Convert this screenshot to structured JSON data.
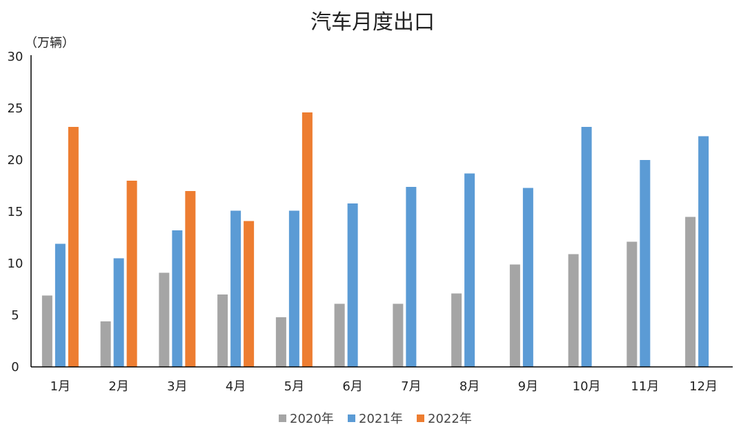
{
  "chart_data": {
    "type": "bar",
    "title": "汽车月度出口",
    "ylabel": "（万辆）",
    "xlabel": "",
    "ylim": [
      0,
      30
    ],
    "yticks": [
      0,
      5,
      10,
      15,
      20,
      25,
      30
    ],
    "grid": false,
    "legend_position": "bottom",
    "categories": [
      "1月",
      "2月",
      "3月",
      "4月",
      "5月",
      "6月",
      "7月",
      "8月",
      "9月",
      "10月",
      "11月",
      "12月"
    ],
    "series": [
      {
        "name": "2020年",
        "color": "#A5A5A5",
        "values": [
          6.9,
          4.4,
          9.1,
          7.0,
          4.8,
          6.1,
          6.1,
          7.1,
          9.9,
          10.9,
          12.1,
          14.5
        ]
      },
      {
        "name": "2021年",
        "color": "#5B9BD5",
        "values": [
          11.9,
          10.5,
          13.2,
          15.1,
          15.1,
          15.8,
          17.4,
          18.7,
          17.3,
          23.2,
          20.0,
          22.3
        ]
      },
      {
        "name": "2022年",
        "color": "#ED7D31",
        "values": [
          23.2,
          18.0,
          17.0,
          14.1,
          24.6,
          null,
          null,
          null,
          null,
          null,
          null,
          null
        ]
      }
    ]
  }
}
